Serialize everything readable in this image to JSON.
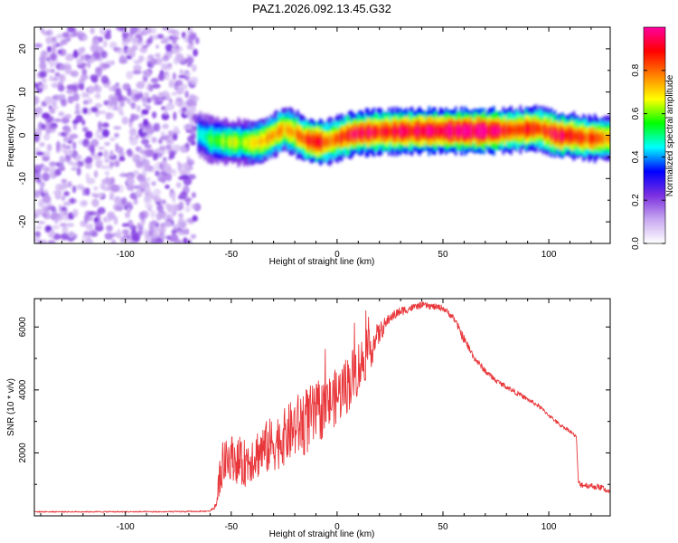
{
  "title": "PAZ1.2026.092.13.45.G32",
  "chart_data": [
    {
      "type": "heatmap",
      "xlabel": "Height of straight line (km)",
      "ylabel": "Frequency (Hz)",
      "xlim": [
        -143,
        129
      ],
      "ylim": [
        -25,
        25
      ],
      "xticks": [
        -100,
        -50,
        0,
        50,
        100
      ],
      "yticks": [
        -20,
        -10,
        0,
        10,
        20
      ],
      "noise_region_km": [
        -143,
        -66
      ],
      "ridge": {
        "description": "Frequency of the normalized-amplitude maximum vs height",
        "x": [
          -66,
          -60,
          -55,
          -50,
          -45,
          -40,
          -35,
          -30,
          -25,
          -20,
          -15,
          -10,
          -5,
          0,
          5,
          10,
          20,
          30,
          40,
          50,
          60,
          70,
          80,
          90,
          95,
          100,
          105,
          110,
          115,
          120,
          129
        ],
        "freq": [
          0.5,
          -1.0,
          -1.3,
          -1.6,
          -1.6,
          -1.8,
          -1.3,
          0.0,
          1.5,
          0.5,
          -1.0,
          -1.5,
          -1.6,
          -0.8,
          0.0,
          0.5,
          0.8,
          0.9,
          1.0,
          1.0,
          1.0,
          1.0,
          1.1,
          1.4,
          1.6,
          0.8,
          -0.1,
          0.0,
          -0.5,
          -0.7,
          -0.7
        ],
        "peak_amplitude": [
          0.45,
          0.55,
          0.6,
          0.65,
          0.65,
          0.7,
          0.75,
          0.8,
          0.75,
          0.8,
          0.85,
          0.9,
          0.85,
          0.85,
          0.9,
          0.95,
          0.9,
          0.95,
          0.95,
          1.0,
          1.0,
          1.0,
          0.9,
          0.9,
          0.85,
          0.9,
          0.95,
          0.95,
          0.9,
          0.85,
          0.8
        ]
      },
      "colorbar": {
        "label": "Normalized spectral amplitude",
        "range": [
          0.0,
          1.0
        ],
        "ticks": [
          "0.0",
          "0.2",
          "0.4",
          "0.6",
          "0.8"
        ],
        "tick_values": [
          0.0,
          0.2,
          0.4,
          0.6,
          0.8
        ],
        "colors": [
          "#ffffff",
          "#c8a8f0",
          "#7b2fe0",
          "#0000ff",
          "#00ffff",
          "#00ff00",
          "#ffff00",
          "#ff8000",
          "#ff0000",
          "#ff00a0"
        ]
      }
    },
    {
      "type": "line",
      "xlabel": "Height of straight line (km)",
      "ylabel": "SNR (10 * v/v)",
      "xlim": [
        -143,
        129
      ],
      "ylim": [
        0,
        6900
      ],
      "xticks": [
        -100,
        -50,
        0,
        50,
        100
      ],
      "yticks": [
        2000,
        4000,
        6000
      ],
      "color": "#e8363a",
      "series": [
        {
          "name": "SNR",
          "x": [
            -143,
            -120,
            -100,
            -80,
            -66,
            -60,
            -57,
            -55,
            -50,
            -45,
            -40,
            -35,
            -30,
            -25,
            -20,
            -15,
            -10,
            -5,
            0,
            5,
            10,
            15,
            20,
            25,
            30,
            35,
            40,
            45,
            50,
            55,
            60,
            65,
            70,
            75,
            80,
            85,
            90,
            95,
            100,
            105,
            110,
            113,
            114,
            115,
            120,
            125,
            129
          ],
          "values": [
            130,
            130,
            130,
            130,
            140,
            150,
            350,
            1500,
            1900,
            1600,
            1900,
            2100,
            2300,
            2500,
            2800,
            3000,
            3200,
            3500,
            3800,
            4200,
            4700,
            5200,
            5800,
            6300,
            6500,
            6600,
            6700,
            6650,
            6600,
            6300,
            5600,
            5000,
            4600,
            4300,
            4100,
            3900,
            3700,
            3500,
            3200,
            2900,
            2700,
            2500,
            1050,
            1000,
            950,
            900,
            750
          ],
          "noise_amplitude": [
            20,
            20,
            20,
            20,
            20,
            20,
            120,
            700,
            700,
            750,
            800,
            850,
            900,
            900,
            1000,
            1100,
            1000,
            900,
            900,
            950,
            900,
            700,
            350,
            150,
            150,
            120,
            100,
            100,
            100,
            100,
            150,
            100,
            100,
            80,
            80,
            80,
            70,
            70,
            60,
            60,
            60,
            60,
            80,
            100,
            100,
            100,
            100
          ]
        }
      ]
    }
  ]
}
